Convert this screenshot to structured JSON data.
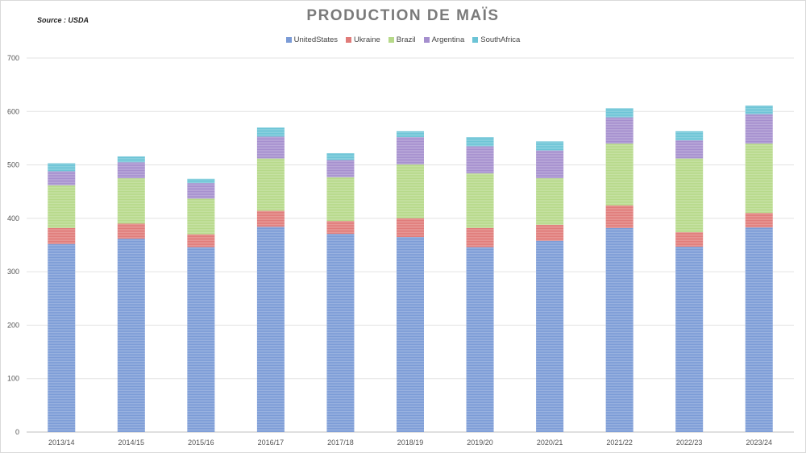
{
  "source": "Source : USDA",
  "chart_data": {
    "type": "bar",
    "stacked": true,
    "title": "PRODUCTION DE MAÏS",
    "xlabel": "",
    "ylabel": "",
    "ylim": [
      0,
      700
    ],
    "yticks": [
      0,
      100,
      200,
      300,
      400,
      500,
      600,
      700
    ],
    "grid": true,
    "legend_position": "top-center",
    "categories": [
      "2013/14",
      "2014/15",
      "2015/16",
      "2016/17",
      "2017/18",
      "2018/19",
      "2019/20",
      "2020/21",
      "2021/22",
      "2022/23",
      "2023/24"
    ],
    "series": [
      {
        "name": "UnitedStates",
        "color": "#7b9bd6",
        "values": [
          352,
          362,
          346,
          384,
          371,
          365,
          346,
          358,
          382,
          347,
          383
        ]
      },
      {
        "name": "Ukraine",
        "color": "#e07b79",
        "values": [
          30,
          28,
          24,
          30,
          24,
          35,
          36,
          30,
          42,
          27,
          27
        ]
      },
      {
        "name": "Brazil",
        "color": "#b6d989",
        "values": [
          80,
          85,
          67,
          98,
          82,
          101,
          102,
          87,
          116,
          138,
          130
        ]
      },
      {
        "name": "Argentina",
        "color": "#a58fce",
        "values": [
          26,
          30,
          29,
          41,
          32,
          51,
          51,
          52,
          49,
          34,
          55
        ]
      },
      {
        "name": "SouthAfrica",
        "color": "#6cc4d6",
        "values": [
          15,
          11,
          8,
          17,
          13,
          11,
          17,
          17,
          17,
          17,
          16
        ]
      }
    ]
  }
}
